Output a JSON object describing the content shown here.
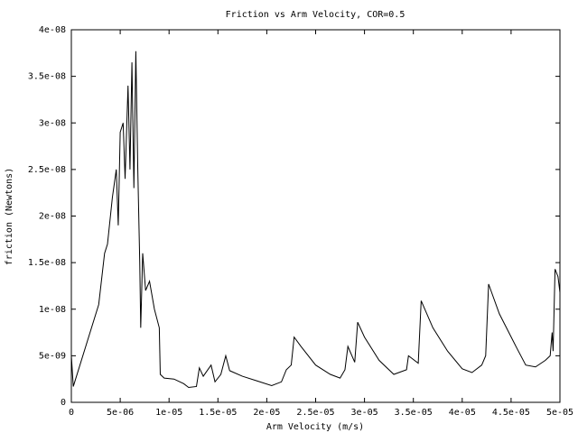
{
  "chart_data": {
    "type": "line",
    "title": "Friction vs Arm Velocity, COR=0.5",
    "x_label": "Arm Velocity (m/s)",
    "y_label": "friction (Newtons)",
    "color": "#000000",
    "xlim": [
      0,
      5e-05
    ],
    "ylim": [
      0,
      4e-08
    ],
    "xticks": [
      0,
      {
        "value": 5e-06,
        "label": "5e-06"
      },
      {
        "value": 1e-05,
        "label": "1e-05"
      },
      {
        "value": 1.5e-05,
        "label": "1.5e-05"
      },
      {
        "value": 2e-05,
        "label": "2e-05"
      },
      {
        "value": 2.5e-05,
        "label": "2.5e-05"
      },
      {
        "value": 3e-05,
        "label": "3e-05"
      },
      {
        "value": 3.5e-05,
        "label": "3.5e-05"
      },
      {
        "value": 4e-05,
        "label": "4e-05"
      },
      {
        "value": 4.5e-05,
        "label": "4.5e-05"
      },
      {
        "value": 5e-05,
        "label": "5e-05"
      }
    ],
    "yticks": [
      0,
      {
        "value": 5e-09,
        "label": "5e-09"
      },
      {
        "value": 1e-08,
        "label": "1e-08"
      },
      {
        "value": 1.5e-08,
        "label": "1.5e-08"
      },
      {
        "value": 2e-08,
        "label": "2e-08"
      },
      {
        "value": 2.5e-08,
        "label": "2.5e-08"
      },
      {
        "value": 3e-08,
        "label": "3e-08"
      },
      {
        "value": 3.5e-08,
        "label": "3.5e-08"
      },
      {
        "value": 4e-08,
        "label": "4e-08"
      }
    ],
    "x": [
      0,
      2e-07,
      2.8e-06,
      3.4e-06,
      3.7e-06,
      4.2e-06,
      4.6e-06,
      4.8e-06,
      5e-06,
      5.3e-06,
      5.5e-06,
      5.8e-06,
      6e-06,
      6.2e-06,
      6.4e-06,
      6.6e-06,
      6.8e-06,
      7e-06,
      7.1e-06,
      7.3e-06,
      7.6e-06,
      8e-06,
      8.5e-06,
      9e-06,
      9.1e-06,
      9.5e-06,
      1.05e-05,
      1.15e-05,
      1.2e-05,
      1.28e-05,
      1.31e-05,
      1.35e-05,
      1.43e-05,
      1.47e-05,
      1.53e-05,
      1.58e-05,
      1.62e-05,
      1.75e-05,
      1.9e-05,
      2.05e-05,
      2.15e-05,
      2.2e-05,
      2.25e-05,
      2.28e-05,
      2.35e-05,
      2.5e-05,
      2.65e-05,
      2.75e-05,
      2.8e-05,
      2.83e-05,
      2.9e-05,
      2.93e-05,
      3e-05,
      3.15e-05,
      3.3e-05,
      3.43e-05,
      3.45e-05,
      3.55e-05,
      3.58e-05,
      3.7e-05,
      3.85e-05,
      4e-05,
      4.1e-05,
      4.2e-05,
      4.24e-05,
      4.27e-05,
      4.38e-05,
      4.55e-05,
      4.65e-05,
      4.75e-05,
      4.85e-05,
      4.9e-05,
      4.92e-05,
      4.93e-05,
      4.95e-05,
      4.98e-05,
      5e-05
    ],
    "values": [
      5e-09,
      1.7e-09,
      1.05e-08,
      1.6e-08,
      1.7e-08,
      2.2e-08,
      2.5e-08,
      1.9e-08,
      2.9e-08,
      3e-08,
      2.4e-08,
      3.4e-08,
      2.5e-08,
      3.65e-08,
      2.3e-08,
      3.77e-08,
      2.5e-08,
      1.5e-08,
      8e-09,
      1.6e-08,
      1.2e-08,
      1.3e-08,
      1e-08,
      8e-09,
      3e-09,
      2.6e-09,
      2.5e-09,
      2e-09,
      1.6e-09,
      1.7e-09,
      3.7e-09,
      2.8e-09,
      4e-09,
      2.2e-09,
      3e-09,
      5e-09,
      3.4e-09,
      2.8e-09,
      2.3e-09,
      1.8e-09,
      2.2e-09,
      3.5e-09,
      4e-09,
      7e-09,
      6e-09,
      4e-09,
      3e-09,
      2.6e-09,
      3.5e-09,
      6e-09,
      4.3e-09,
      8.6e-09,
      7e-09,
      4.5e-09,
      3e-09,
      3.5e-09,
      5e-09,
      4.2e-09,
      1.09e-08,
      8e-09,
      5.5e-09,
      3.6e-09,
      3.2e-09,
      4e-09,
      5e-09,
      1.27e-08,
      9.5e-09,
      6e-09,
      4e-09,
      3.8e-09,
      4.5e-09,
      5e-09,
      7.5e-09,
      5.5e-09,
      1.43e-08,
      1.35e-08,
      1.18e-08
    ]
  }
}
